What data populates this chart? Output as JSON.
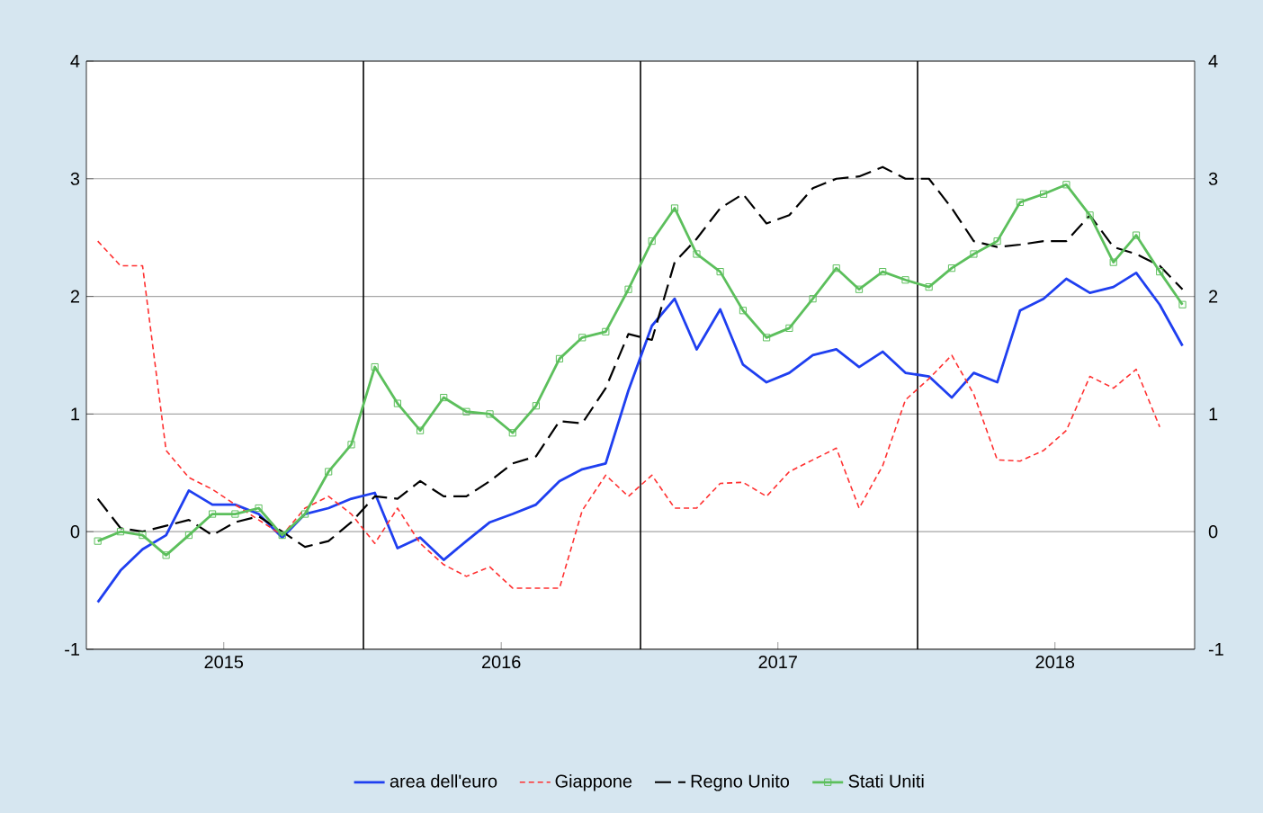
{
  "chart_data": {
    "type": "line",
    "x": [
      "2015-01-16",
      "2015-02-15",
      "2015-03-16",
      "2015-04-16",
      "2015-05-16",
      "2015-06-16",
      "2015-07-16",
      "2015-08-16",
      "2015-09-16",
      "2015-10-16",
      "2015-11-16",
      "2015-12-16",
      "2016-01-16",
      "2016-02-15",
      "2016-03-16",
      "2016-04-16",
      "2016-05-16",
      "2016-06-16",
      "2016-07-16",
      "2016-08-16",
      "2016-09-16",
      "2016-10-16",
      "2016-11-16",
      "2016-12-16",
      "2017-01-16",
      "2017-02-15",
      "2017-03-16",
      "2017-04-16",
      "2017-05-16",
      "2017-06-16",
      "2017-07-16",
      "2017-08-16",
      "2017-09-16",
      "2017-10-16",
      "2017-11-16",
      "2017-12-16",
      "2018-01-16",
      "2018-02-15",
      "2018-03-16",
      "2018-04-16",
      "2018-05-16",
      "2018-06-16",
      "2018-07-16",
      "2018-08-16",
      "2018-09-16",
      "2018-10-16",
      "2018-11-16",
      "2018-12-16"
    ],
    "series": [
      {
        "name": "area dell'euro",
        "color": "#1f3ff0",
        "line_style": "solid",
        "marker": "none",
        "values": [
          -0.6,
          -0.33,
          -0.15,
          -0.03,
          0.35,
          0.23,
          0.23,
          0.15,
          -0.05,
          0.15,
          0.2,
          0.28,
          0.33,
          -0.14,
          -0.05,
          -0.24,
          -0.08,
          0.08,
          0.15,
          0.23,
          0.43,
          0.53,
          0.58,
          1.2,
          1.75,
          1.98,
          1.55,
          1.89,
          1.42,
          1.27,
          1.35,
          1.5,
          1.55,
          1.4,
          1.53,
          1.35,
          1.32,
          1.14,
          1.35,
          1.27,
          1.88,
          1.98,
          2.15,
          2.03,
          2.08,
          2.2,
          1.93,
          1.58
        ]
      },
      {
        "name": "Giappone",
        "color": "#ff3030",
        "line_style": "dotted",
        "marker": "none",
        "values": [
          2.47,
          2.26,
          2.26,
          0.69,
          0.46,
          0.36,
          0.23,
          0.1,
          -0.03,
          0.2,
          0.3,
          0.15,
          -0.1,
          0.2,
          -0.1,
          -0.28,
          -0.38,
          -0.3,
          -0.48,
          -0.48,
          -0.48,
          0.18,
          0.48,
          0.3,
          0.48,
          0.2,
          0.2,
          0.41,
          0.42,
          0.3,
          0.51,
          0.61,
          0.71,
          0.2,
          0.56,
          1.12,
          1.3,
          1.5,
          1.17,
          0.61,
          0.6,
          0.69,
          0.86,
          1.32,
          1.22,
          1.38,
          0.89,
          null
        ]
      },
      {
        "name": "Regno Unito",
        "color": "#000000",
        "line_style": "dashed",
        "marker": "none",
        "values": [
          0.28,
          0.03,
          0.0,
          0.05,
          0.1,
          -0.03,
          0.08,
          0.13,
          0.0,
          -0.13,
          -0.08,
          0.08,
          0.3,
          0.28,
          0.43,
          0.3,
          0.3,
          0.43,
          0.58,
          0.64,
          0.94,
          0.92,
          1.22,
          1.68,
          1.63,
          2.29,
          2.49,
          2.75,
          2.87,
          2.62,
          2.69,
          2.92,
          3.0,
          3.02,
          3.1,
          3.0,
          3.0,
          2.75,
          2.47,
          2.42,
          2.44,
          2.47,
          2.47,
          2.69,
          2.42,
          2.36,
          2.26,
          2.06
        ]
      },
      {
        "name": "Stati Uniti",
        "color": "#5cbf5c",
        "line_style": "solid",
        "marker": "square",
        "values": [
          -0.08,
          0.0,
          -0.03,
          -0.2,
          -0.03,
          0.15,
          0.15,
          0.2,
          -0.03,
          0.15,
          0.51,
          0.74,
          1.4,
          1.09,
          0.86,
          1.14,
          1.02,
          1.0,
          0.84,
          1.07,
          1.47,
          1.65,
          1.7,
          2.06,
          2.47,
          2.75,
          2.36,
          2.21,
          1.88,
          1.65,
          1.73,
          1.98,
          2.24,
          2.06,
          2.21,
          2.14,
          2.08,
          2.24,
          2.36,
          2.47,
          2.8,
          2.87,
          2.95,
          2.69,
          2.29,
          2.52,
          2.21,
          1.93
        ]
      }
    ],
    "xlim": [
      "2015-01-01",
      "2019-01-01"
    ],
    "xticks": [
      {
        "value": "2015-07-01",
        "label": "2015"
      },
      {
        "value": "2016-07-01",
        "label": "2016"
      },
      {
        "value": "2017-07-01",
        "label": "2017"
      },
      {
        "value": "2018-07-01",
        "label": "2018"
      }
    ],
    "ylim": [
      -1,
      4
    ],
    "yticks": [
      -1,
      0,
      1,
      2,
      3,
      4
    ],
    "y2lim": [
      -1,
      4
    ],
    "y2ticks": [
      -1,
      0,
      1,
      2,
      3,
      4
    ],
    "ref_lines": [
      {
        "axis": "x",
        "value": "2016-01-01",
        "color": "#000000"
      },
      {
        "axis": "x",
        "value": "2017-01-01",
        "color": "#000000"
      },
      {
        "axis": "x",
        "value": "2018-01-01",
        "color": "#000000"
      }
    ],
    "grid": "y",
    "legend": "bottom"
  }
}
